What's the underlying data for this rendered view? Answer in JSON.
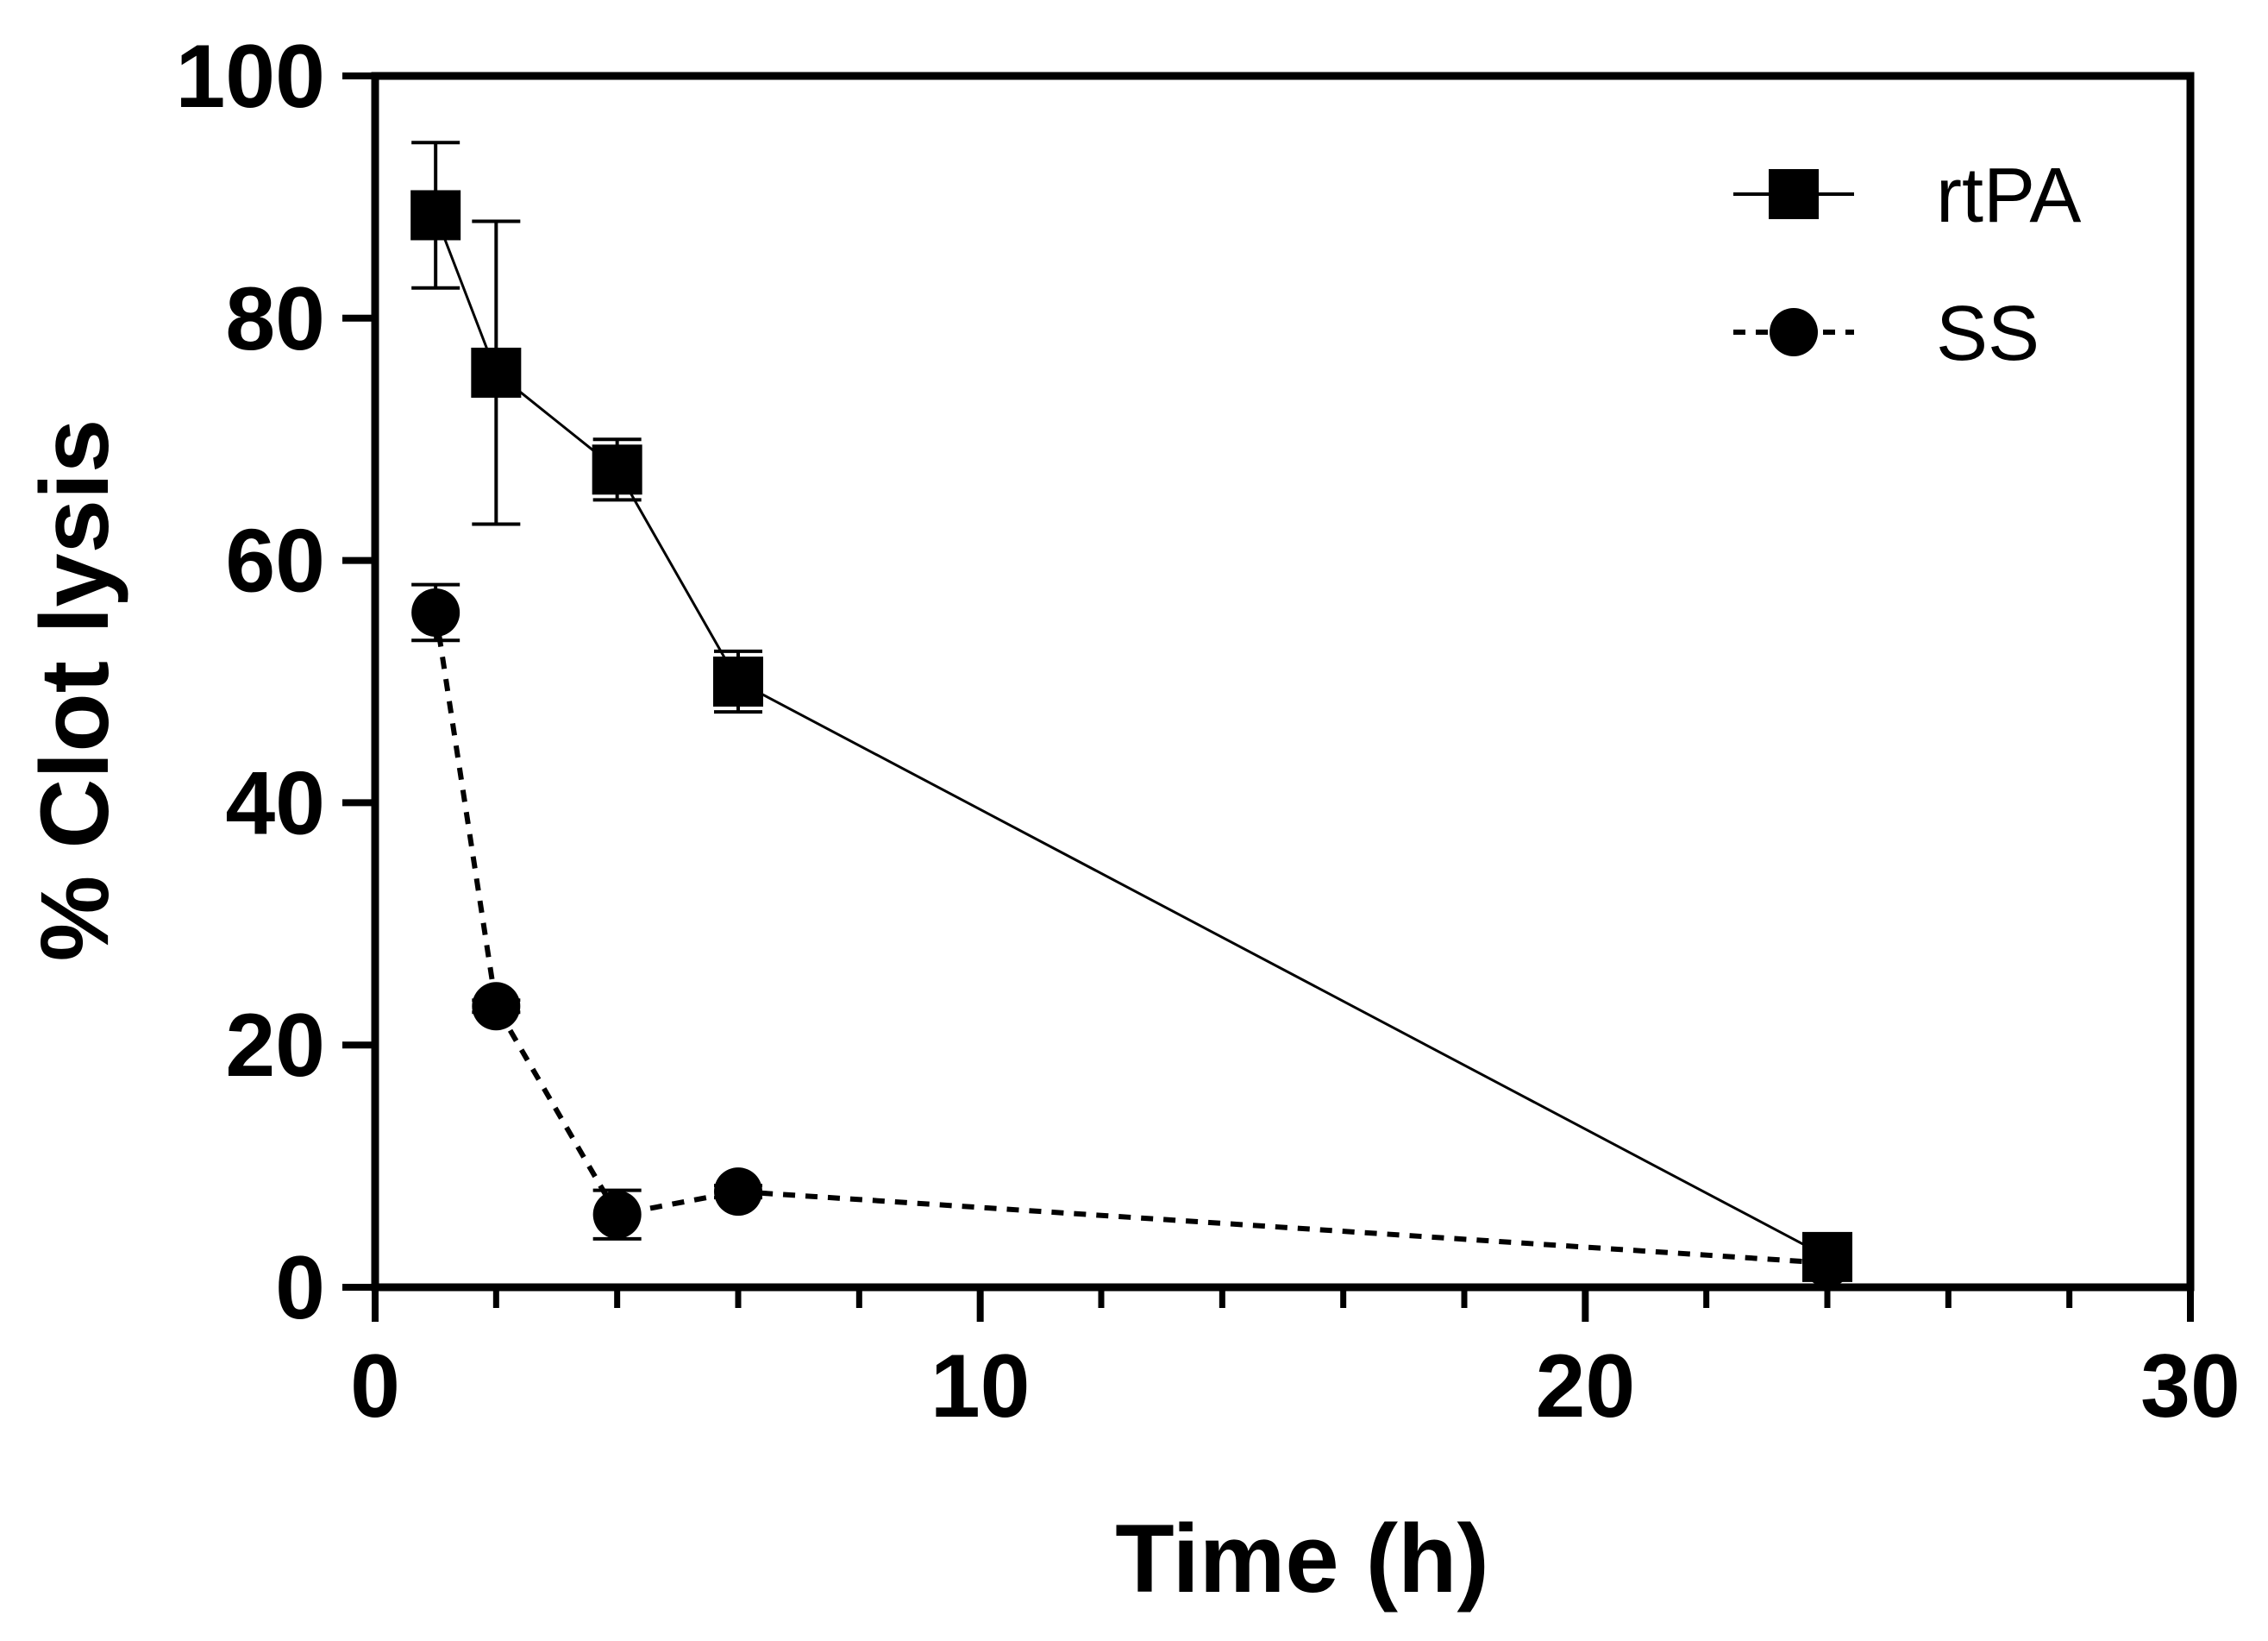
{
  "chart_data": {
    "type": "line",
    "title": "",
    "xlabel": "Time (h)",
    "ylabel": "% Clot lysis",
    "xlim": [
      0,
      30
    ],
    "ylim": [
      0,
      100
    ],
    "x_ticks": [
      0,
      10,
      20,
      30
    ],
    "y_ticks": [
      0,
      20,
      40,
      60,
      80,
      100
    ],
    "x_tick_labels": [
      "0",
      "10",
      "20",
      "30"
    ],
    "y_tick_labels": [
      "0",
      "20",
      "40",
      "60",
      "80",
      "100"
    ],
    "x_minor_step": 2,
    "legend": "top-right",
    "grid": false,
    "series": [
      {
        "name": "rtPA",
        "marker": "square",
        "line_style": "solid",
        "color": "#000000",
        "x": [
          1,
          2,
          4,
          6,
          24
        ],
        "y": [
          88.5,
          75.5,
          67.5,
          50,
          2.5
        ],
        "error": [
          6,
          12.5,
          2.5,
          2.5,
          1
        ]
      },
      {
        "name": "SS",
        "marker": "circle",
        "line_style": "dashed",
        "color": "#000000",
        "x": [
          1,
          2,
          4,
          6,
          24
        ],
        "y": [
          55.7,
          23.2,
          6,
          7.9,
          2
        ],
        "error": [
          2.3,
          0.5,
          2,
          0.5,
          0.5
        ]
      }
    ]
  }
}
